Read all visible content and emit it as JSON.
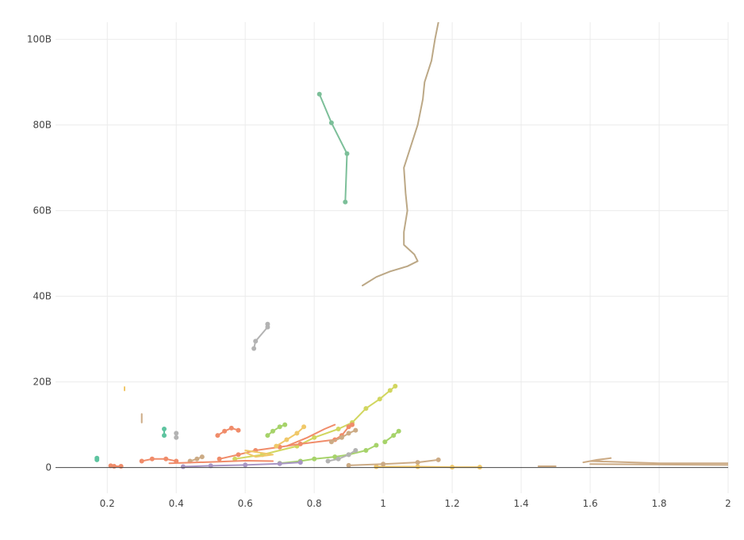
{
  "chart_data": {
    "type": "line",
    "title": "",
    "xlabel": "",
    "ylabel": "",
    "xlim": [
      0.05,
      2.0
    ],
    "ylim": [
      -6,
      104
    ],
    "x_ticks": [
      {
        "value": 0.2,
        "label": "0.2"
      },
      {
        "value": 0.4,
        "label": "0.4"
      },
      {
        "value": 0.6,
        "label": "0.6"
      },
      {
        "value": 0.8,
        "label": "0.8"
      },
      {
        "value": 1.0,
        "label": "1"
      },
      {
        "value": 1.2,
        "label": "1.2"
      },
      {
        "value": 1.4,
        "label": "1.4"
      },
      {
        "value": 1.6,
        "label": "1.6"
      },
      {
        "value": 1.8,
        "label": "1.8"
      },
      {
        "value": 2.0,
        "label": "2"
      }
    ],
    "y_ticks": [
      {
        "value": 0,
        "label": "0"
      },
      {
        "value": 20,
        "label": "20B"
      },
      {
        "value": 40,
        "label": "40B"
      },
      {
        "value": 60,
        "label": "60B"
      },
      {
        "value": 80,
        "label": "80B"
      },
      {
        "value": 100,
        "label": "100B"
      }
    ],
    "grid": true,
    "series": [
      {
        "color": "#bca886",
        "markers": false,
        "points": [
          [
            0.94,
            42.5
          ],
          [
            0.98,
            44.5
          ],
          [
            1.02,
            45.8
          ],
          [
            1.07,
            47
          ],
          [
            1.1,
            48.2
          ],
          [
            1.09,
            49.8
          ],
          [
            1.06,
            52
          ],
          [
            1.06,
            55
          ],
          [
            1.07,
            60
          ],
          [
            1.065,
            64
          ],
          [
            1.06,
            70
          ],
          [
            1.08,
            75
          ],
          [
            1.1,
            80
          ],
          [
            1.115,
            86
          ],
          [
            1.12,
            90
          ],
          [
            1.14,
            95
          ],
          [
            1.15,
            100
          ],
          [
            1.16,
            104
          ]
        ]
      },
      {
        "color": "#7cbf99",
        "markers": true,
        "points": [
          [
            0.815,
            87.2
          ],
          [
            0.85,
            80.5
          ],
          [
            0.895,
            73.3
          ],
          [
            0.89,
            62
          ]
        ]
      },
      {
        "color": "#b3b3b3",
        "markers": true,
        "points": [
          [
            0.625,
            27.8
          ],
          [
            0.63,
            29.5
          ],
          [
            0.665,
            32.8
          ],
          [
            0.665,
            33.5
          ]
        ]
      },
      {
        "color": "#d1d65f",
        "markers": true,
        "points": [
          [
            0.57,
            2
          ],
          [
            0.65,
            3
          ],
          [
            0.75,
            5
          ],
          [
            0.8,
            7
          ],
          [
            0.87,
            9
          ],
          [
            0.91,
            10.5
          ],
          [
            0.95,
            13.8
          ],
          [
            0.99,
            16
          ],
          [
            1.02,
            18
          ],
          [
            1.035,
            19
          ]
        ]
      },
      {
        "color": "#a6d36a",
        "markers": true,
        "points": [
          [
            0.665,
            7.5
          ],
          [
            0.68,
            8.5
          ],
          [
            0.7,
            9.5
          ],
          [
            0.715,
            10
          ]
        ]
      },
      {
        "color": "#a6d36a",
        "markers": true,
        "points": [
          [
            1.005,
            6
          ],
          [
            1.03,
            7.5
          ],
          [
            1.045,
            8.5
          ]
        ]
      },
      {
        "color": "#a6d36a",
        "markers": true,
        "points": [
          [
            0.7,
            1
          ],
          [
            0.76,
            1.5
          ],
          [
            0.8,
            2
          ],
          [
            0.86,
            2.5
          ],
          [
            0.9,
            3
          ],
          [
            0.95,
            4
          ],
          [
            0.98,
            5.2
          ]
        ]
      },
      {
        "color": "#f08c6a",
        "markers": true,
        "points": [
          [
            0.52,
            7.5
          ],
          [
            0.54,
            8.5
          ],
          [
            0.56,
            9.2
          ],
          [
            0.58,
            8.7
          ]
        ]
      },
      {
        "color": "#f08c6a",
        "markers": true,
        "points": [
          [
            0.525,
            2
          ],
          [
            0.58,
            3
          ],
          [
            0.63,
            4
          ],
          [
            0.7,
            4.8
          ],
          [
            0.76,
            5.5
          ],
          [
            0.86,
            6.5
          ],
          [
            0.88,
            7.5
          ],
          [
            0.9,
            9.5
          ],
          [
            0.91,
            10
          ]
        ]
      },
      {
        "color": "#f08c6a",
        "markers": false,
        "points": [
          [
            0.72,
            5
          ],
          [
            0.78,
            7
          ],
          [
            0.83,
            9
          ],
          [
            0.86,
            10
          ]
        ]
      },
      {
        "color": "#f08c6a",
        "markers": true,
        "points": [
          [
            0.3,
            1.5
          ],
          [
            0.33,
            2
          ],
          [
            0.37,
            2
          ],
          [
            0.4,
            1.5
          ]
        ]
      },
      {
        "color": "#f08c6a",
        "markers": true,
        "points": [
          [
            0.21,
            0.4
          ],
          [
            0.22,
            0.3
          ],
          [
            0.24,
            0.3
          ]
        ]
      },
      {
        "color": "#f0c869",
        "markers": true,
        "points": [
          [
            0.69,
            5
          ],
          [
            0.72,
            6.5
          ],
          [
            0.75,
            8
          ],
          [
            0.77,
            9.5
          ]
        ]
      },
      {
        "color": "#f0c869",
        "markers": false,
        "points": [
          [
            0.6,
            4
          ],
          [
            0.68,
            3
          ],
          [
            0.63,
            2.5
          ],
          [
            0.6,
            3.5
          ]
        ]
      },
      {
        "color": "#f0c869",
        "markers": true,
        "points": [
          [
            0.98,
            0.2
          ],
          [
            1.1,
            0.2
          ],
          [
            1.2,
            0.1
          ],
          [
            1.28,
            0.1
          ]
        ]
      },
      {
        "color": "#f0c869",
        "markers": false,
        "points": [
          [
            0.25,
            18
          ],
          [
            0.25,
            18.8
          ]
        ]
      },
      {
        "color": "#ccab85",
        "markers": true,
        "points": [
          [
            0.44,
            1.5
          ],
          [
            0.46,
            2
          ],
          [
            0.475,
            2.5
          ]
        ]
      },
      {
        "color": "#ccab85",
        "markers": true,
        "points": [
          [
            0.85,
            6
          ],
          [
            0.88,
            7
          ],
          [
            0.9,
            8
          ],
          [
            0.92,
            8.7
          ]
        ]
      },
      {
        "color": "#ccab85",
        "markers": false,
        "points": [
          [
            0.3,
            10.5
          ],
          [
            0.3,
            12.5
          ]
        ]
      },
      {
        "color": "#ccab85",
        "markers": false,
        "points": [
          [
            1.45,
            0.3
          ],
          [
            1.5,
            0.3
          ]
        ]
      },
      {
        "color": "#ccab85",
        "markers": true,
        "points": [
          [
            0.9,
            0.5
          ],
          [
            1.0,
            0.8
          ],
          [
            1.1,
            1.2
          ],
          [
            1.16,
            1.8
          ]
        ]
      },
      {
        "color": "#ccab85",
        "markers": false,
        "points": [
          [
            1.58,
            1.2
          ],
          [
            1.62,
            1.8
          ],
          [
            1.66,
            2.2
          ],
          [
            1.6,
            1.5
          ],
          [
            1.8,
            1
          ],
          [
            2.0,
            1
          ]
        ]
      },
      {
        "color": "#ccab85",
        "markers": false,
        "points": [
          [
            1.6,
            0.8
          ],
          [
            2.0,
            0.6
          ]
        ]
      },
      {
        "color": "#5ec4a0",
        "markers": true,
        "points": [
          [
            0.365,
            7.5
          ],
          [
            0.365,
            9
          ]
        ]
      },
      {
        "color": "#5ec4a0",
        "markers": true,
        "points": [
          [
            0.17,
            1.8
          ],
          [
            0.17,
            2.2
          ]
        ]
      },
      {
        "color": "#b3b3b3",
        "markers": true,
        "points": [
          [
            0.4,
            7
          ],
          [
            0.4,
            8
          ]
        ]
      },
      {
        "color": "#b3b3b3",
        "markers": true,
        "points": [
          [
            0.84,
            1.5
          ],
          [
            0.87,
            2
          ],
          [
            0.9,
            3
          ],
          [
            0.92,
            4
          ]
        ]
      },
      {
        "color": "#a896c4",
        "markers": true,
        "points": [
          [
            0.42,
            0.2
          ],
          [
            0.5,
            0.4
          ],
          [
            0.6,
            0.6
          ],
          [
            0.7,
            0.9
          ],
          [
            0.76,
            1.2
          ]
        ]
      },
      {
        "color": "#f08c6a",
        "markers": false,
        "points": [
          [
            0.38,
            1
          ],
          [
            0.5,
            1.3
          ],
          [
            0.6,
            1.6
          ],
          [
            0.68,
            1.5
          ]
        ]
      }
    ]
  }
}
